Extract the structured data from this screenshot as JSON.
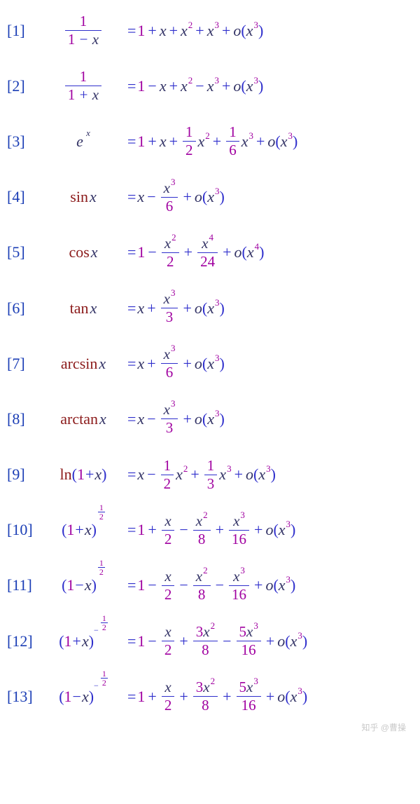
{
  "colors": {
    "index": "#1a3db5",
    "operator": "#2e2ecc",
    "number": "#a000a0",
    "variable": "#333366",
    "function": "#8b1a1a",
    "background": "#ffffff",
    "fraction_bar": "#2e2ecc"
  },
  "typography": {
    "font_family": "Cambria Math / Times",
    "base_fontsize_pt": 17,
    "superscript_fontsize_pt": 10
  },
  "watermark": "知乎 @曹操",
  "formulas": [
    {
      "index": "[1]",
      "lhs_type": "frac",
      "lhs_num": "1",
      "lhs_den_op": "−",
      "lhs_den_var": "x",
      "rhs": "1+x+x^2+x^3+o(x^3)"
    },
    {
      "index": "[2]",
      "lhs_type": "frac",
      "lhs_num": "1",
      "lhs_den_op": "+",
      "lhs_den_var": "x",
      "rhs": "1−x+x^2−x^3+o(x^3)"
    },
    {
      "index": "[3]",
      "lhs_type": "exp",
      "lhs_base": "e",
      "lhs_exp": "x",
      "rhs": "1+x+(1/2)x^2+(1/6)x^3+o(x^3)"
    },
    {
      "index": "[4]",
      "lhs_type": "fn",
      "lhs_fn": "sin",
      "lhs_arg": "x",
      "rhs": "x−(x^3/6)+o(x^3)"
    },
    {
      "index": "[5]",
      "lhs_type": "fn",
      "lhs_fn": "cos",
      "lhs_arg": "x",
      "rhs": "1−(x^2/2)+(x^4/24)+o(x^4)"
    },
    {
      "index": "[6]",
      "lhs_type": "fn",
      "lhs_fn": "tan",
      "lhs_arg": "x",
      "rhs": "x+(x^3/3)+o(x^3)"
    },
    {
      "index": "[7]",
      "lhs_type": "fn",
      "lhs_fn": "arcsin",
      "lhs_arg": "x",
      "rhs": "x+(x^3/6)+o(x^3)"
    },
    {
      "index": "[8]",
      "lhs_type": "fn",
      "lhs_fn": "arctan",
      "lhs_arg": "x",
      "rhs": "x−(x^3/3)+o(x^3)"
    },
    {
      "index": "[9]",
      "lhs_type": "ln",
      "lhs_fn": "ln",
      "lhs_inner_op": "+",
      "lhs_arg": "x",
      "rhs": "x−(1/2)x^2+(1/3)x^3+o(x^3)"
    },
    {
      "index": "[10]",
      "lhs_type": "pow",
      "lhs_inner_op": "+",
      "lhs_arg": "x",
      "lhs_pow_sign": "",
      "lhs_pow": "1/2",
      "rhs": "1+(x/2)−(x^2/8)+(x^3/16)+o(x^3)"
    },
    {
      "index": "[11]",
      "lhs_type": "pow",
      "lhs_inner_op": "−",
      "lhs_arg": "x",
      "lhs_pow_sign": "",
      "lhs_pow": "1/2",
      "rhs": "1−(x/2)−(x^2/8)−(x^3/16)+o(x^3)"
    },
    {
      "index": "[12]",
      "lhs_type": "pow",
      "lhs_inner_op": "+",
      "lhs_arg": "x",
      "lhs_pow_sign": "−",
      "lhs_pow": "1/2",
      "rhs": "1−(x/2)+(3x^2/8)−(5x^3/16)+o(x^3)"
    },
    {
      "index": "[13]",
      "lhs_type": "pow",
      "lhs_inner_op": "−",
      "lhs_arg": "x",
      "lhs_pow_sign": "−",
      "lhs_pow": "1/2",
      "rhs": "1+(x/2)+(3x^2/8)+(5x^3/16)+o(x^3)"
    }
  ],
  "rhs_layout": {
    "1": [
      {
        "t": "n",
        "v": "1"
      },
      {
        "t": "op",
        "v": "+"
      },
      {
        "t": "x"
      },
      {
        "t": "op",
        "v": "+"
      },
      {
        "t": "xpow",
        "p": "2"
      },
      {
        "t": "op",
        "v": "+"
      },
      {
        "t": "xpow",
        "p": "3"
      },
      {
        "t": "op",
        "v": "+"
      },
      {
        "t": "o",
        "p": "3"
      }
    ],
    "2": [
      {
        "t": "n",
        "v": "1"
      },
      {
        "t": "op",
        "v": "−"
      },
      {
        "t": "x"
      },
      {
        "t": "op",
        "v": "+"
      },
      {
        "t": "xpow",
        "p": "2"
      },
      {
        "t": "op",
        "v": "−"
      },
      {
        "t": "xpow",
        "p": "3"
      },
      {
        "t": "op",
        "v": "+"
      },
      {
        "t": "o",
        "p": "3"
      }
    ],
    "3": [
      {
        "t": "n",
        "v": "1"
      },
      {
        "t": "op",
        "v": "+"
      },
      {
        "t": "x"
      },
      {
        "t": "op",
        "v": "+"
      },
      {
        "t": "nfrac",
        "nu": "1",
        "de": "2"
      },
      {
        "t": "xpow",
        "p": "2"
      },
      {
        "t": "op",
        "v": "+"
      },
      {
        "t": "nfrac",
        "nu": "1",
        "de": "6"
      },
      {
        "t": "xpow",
        "p": "3"
      },
      {
        "t": "op",
        "v": "+"
      },
      {
        "t": "o",
        "p": "3"
      }
    ],
    "4": [
      {
        "t": "x"
      },
      {
        "t": "op",
        "v": "−"
      },
      {
        "t": "xfrac",
        "p": "3",
        "de": "6"
      },
      {
        "t": "op",
        "v": "+"
      },
      {
        "t": "o",
        "p": "3"
      }
    ],
    "5": [
      {
        "t": "n",
        "v": "1"
      },
      {
        "t": "op",
        "v": "−"
      },
      {
        "t": "xfrac",
        "p": "2",
        "de": "2"
      },
      {
        "t": "op",
        "v": "+"
      },
      {
        "t": "xfrac",
        "p": "4",
        "de": "24"
      },
      {
        "t": "op",
        "v": "+"
      },
      {
        "t": "o",
        "p": "4"
      }
    ],
    "6": [
      {
        "t": "x"
      },
      {
        "t": "op",
        "v": "+"
      },
      {
        "t": "xfrac",
        "p": "3",
        "de": "3"
      },
      {
        "t": "op",
        "v": "+"
      },
      {
        "t": "o",
        "p": "3"
      }
    ],
    "7": [
      {
        "t": "x"
      },
      {
        "t": "op",
        "v": "+"
      },
      {
        "t": "xfrac",
        "p": "3",
        "de": "6"
      },
      {
        "t": "op",
        "v": "+"
      },
      {
        "t": "o",
        "p": "3"
      }
    ],
    "8": [
      {
        "t": "x"
      },
      {
        "t": "op",
        "v": "−"
      },
      {
        "t": "xfrac",
        "p": "3",
        "de": "3"
      },
      {
        "t": "op",
        "v": "+"
      },
      {
        "t": "o",
        "p": "3"
      }
    ],
    "9": [
      {
        "t": "x"
      },
      {
        "t": "op",
        "v": "−"
      },
      {
        "t": "nfrac",
        "nu": "1",
        "de": "2"
      },
      {
        "t": "xpow",
        "p": "2"
      },
      {
        "t": "op",
        "v": "+"
      },
      {
        "t": "nfrac",
        "nu": "1",
        "de": "3"
      },
      {
        "t": "xpow",
        "p": "3"
      },
      {
        "t": "op",
        "v": "+"
      },
      {
        "t": "o",
        "p": "3"
      }
    ],
    "10": [
      {
        "t": "n",
        "v": "1"
      },
      {
        "t": "op",
        "v": "+"
      },
      {
        "t": "xfrac",
        "p": "",
        "de": "2"
      },
      {
        "t": "op",
        "v": "−"
      },
      {
        "t": "xfrac",
        "p": "2",
        "de": "8"
      },
      {
        "t": "op",
        "v": "+"
      },
      {
        "t": "xfrac",
        "p": "3",
        "de": "16"
      },
      {
        "t": "op",
        "v": "+"
      },
      {
        "t": "o",
        "p": "3"
      }
    ],
    "11": [
      {
        "t": "n",
        "v": "1"
      },
      {
        "t": "op",
        "v": "−"
      },
      {
        "t": "xfrac",
        "p": "",
        "de": "2"
      },
      {
        "t": "op",
        "v": "−"
      },
      {
        "t": "xfrac",
        "p": "2",
        "de": "8"
      },
      {
        "t": "op",
        "v": "−"
      },
      {
        "t": "xfrac",
        "p": "3",
        "de": "16"
      },
      {
        "t": "op",
        "v": "+"
      },
      {
        "t": "o",
        "p": "3"
      }
    ],
    "12": [
      {
        "t": "n",
        "v": "1"
      },
      {
        "t": "op",
        "v": "−"
      },
      {
        "t": "xfrac",
        "p": "",
        "de": "2"
      },
      {
        "t": "op",
        "v": "+"
      },
      {
        "t": "cxfrac",
        "c": "3",
        "p": "2",
        "de": "8"
      },
      {
        "t": "op",
        "v": "−"
      },
      {
        "t": "cxfrac",
        "c": "5",
        "p": "3",
        "de": "16"
      },
      {
        "t": "op",
        "v": "+"
      },
      {
        "t": "o",
        "p": "3"
      }
    ],
    "13": [
      {
        "t": "n",
        "v": "1"
      },
      {
        "t": "op",
        "v": "+"
      },
      {
        "t": "xfrac",
        "p": "",
        "de": "2"
      },
      {
        "t": "op",
        "v": "+"
      },
      {
        "t": "cxfrac",
        "c": "3",
        "p": "2",
        "de": "8"
      },
      {
        "t": "op",
        "v": "+"
      },
      {
        "t": "cxfrac",
        "c": "5",
        "p": "3",
        "de": "16"
      },
      {
        "t": "op",
        "v": "+"
      },
      {
        "t": "o",
        "p": "3"
      }
    ]
  }
}
